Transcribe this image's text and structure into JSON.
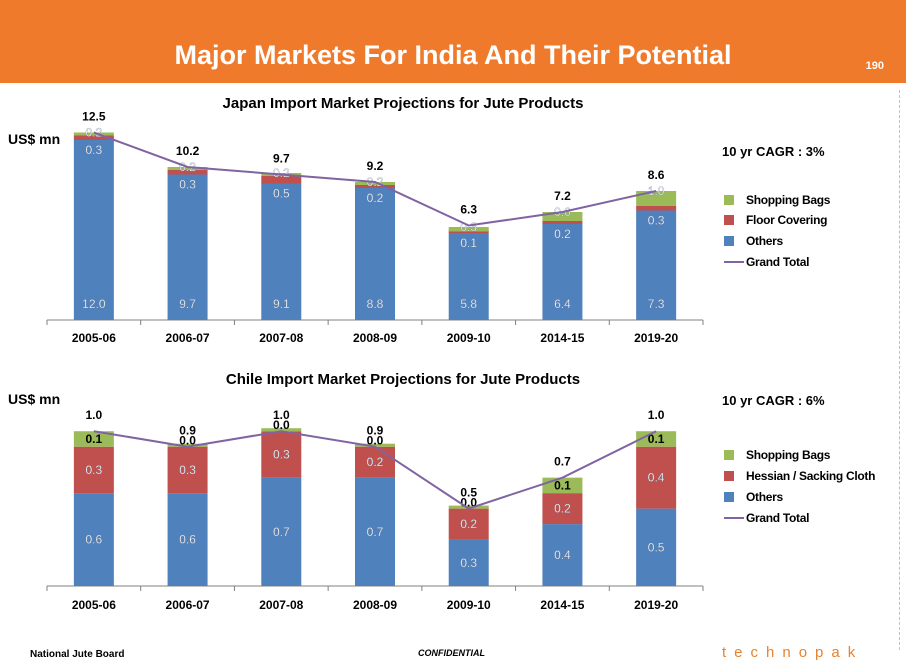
{
  "header": {
    "title": "Major Markets For India And Their Potential",
    "page_number": "190"
  },
  "footer": {
    "left": "National Jute Board",
    "center": "CONFIDENTIAL",
    "brand": "technopak"
  },
  "colors": {
    "header": "#f07a2b",
    "others": "#4f81bd",
    "middle": "#c0504d",
    "bags": "#9bbb59",
    "total": "#8064a2"
  },
  "chart_data": [
    {
      "type": "bar",
      "stacked": true,
      "title": "Japan Import Market Projections for Jute Products",
      "ylabel": "US$ mn",
      "annotation": "10 yr CAGR : 3%",
      "categories": [
        "2005-06",
        "2006-07",
        "2007-08",
        "2008-09",
        "2009-10",
        "2014-15",
        "2019-20"
      ],
      "series": [
        {
          "name": "Others",
          "values": [
            12.0,
            9.7,
            9.1,
            8.8,
            5.8,
            6.4,
            7.3
          ],
          "labels": [
            "12.0",
            "9.7",
            "9.1",
            "8.8",
            "5.8",
            "6.4",
            "7.3"
          ]
        },
        {
          "name": "Floor Covering",
          "values": [
            0.3,
            0.3,
            0.5,
            0.2,
            0.1,
            0.2,
            0.3
          ],
          "labels": [
            "0.3",
            "0.3",
            "0.5",
            "0.2",
            "0.1",
            "0.2",
            "0.3"
          ]
        },
        {
          "name": "Shopping Bags",
          "values": [
            0.2,
            0.2,
            0.2,
            0.2,
            0.3,
            0.6,
            1.0
          ],
          "labels": [
            "0.2",
            "0.2",
            "0.2",
            "0.2",
            "0.3",
            "0.6",
            "1.0"
          ]
        }
      ],
      "line": {
        "name": "Grand Total",
        "values": [
          12.5,
          10.2,
          9.7,
          9.2,
          6.3,
          7.2,
          8.6
        ],
        "labels": [
          "12.5",
          "10.2",
          "9.7",
          "9.2",
          "6.3",
          "7.2",
          "8.6"
        ]
      },
      "legend": [
        "Shopping Bags",
        "Floor Covering",
        "Others",
        "Grand Total"
      ],
      "legend_position": "right",
      "ylim": [
        0,
        14
      ],
      "grid": false
    },
    {
      "type": "bar",
      "stacked": true,
      "title": "Chile Import Market Projections for Jute Products",
      "ylabel": "US$ mn",
      "annotation": "10 yr CAGR : 6%",
      "categories": [
        "2005-06",
        "2006-07",
        "2007-08",
        "2008-09",
        "2009-10",
        "2014-15",
        "2019-20"
      ],
      "series": [
        {
          "name": "Others",
          "values": [
            0.6,
            0.6,
            0.7,
            0.7,
            0.3,
            0.4,
            0.5
          ],
          "labels": [
            "0.6",
            "0.6",
            "0.7",
            "0.7",
            "0.3",
            "0.4",
            "0.5"
          ]
        },
        {
          "name": "Hessian / Sacking Cloth",
          "values": [
            0.3,
            0.3,
            0.3,
            0.2,
            0.2,
            0.2,
            0.4
          ],
          "labels": [
            "0.3",
            "0.3",
            "0.3",
            "0.2",
            "0.2",
            "0.2",
            "0.4"
          ]
        },
        {
          "name": "Shopping Bags",
          "values": [
            0.1,
            0.0,
            0.0,
            0.0,
            0.0,
            0.1,
            0.1
          ],
          "labels": [
            "0.1",
            "0.0",
            "0.0",
            "0.0",
            "0.0",
            "0.1",
            "0.1"
          ]
        }
      ],
      "line": {
        "name": "Grand Total",
        "values": [
          1.0,
          0.9,
          1.0,
          0.9,
          0.5,
          0.7,
          1.0
        ],
        "labels": [
          "1.0",
          "0.9",
          "1.0",
          "0.9",
          "0.5",
          "0.7",
          "1.0"
        ]
      },
      "legend": [
        "Shopping Bags",
        "Hessian / Sacking Cloth",
        "Others",
        "Grand Total"
      ],
      "legend_position": "right",
      "ylim": [
        0,
        1.15
      ],
      "grid": false
    }
  ]
}
